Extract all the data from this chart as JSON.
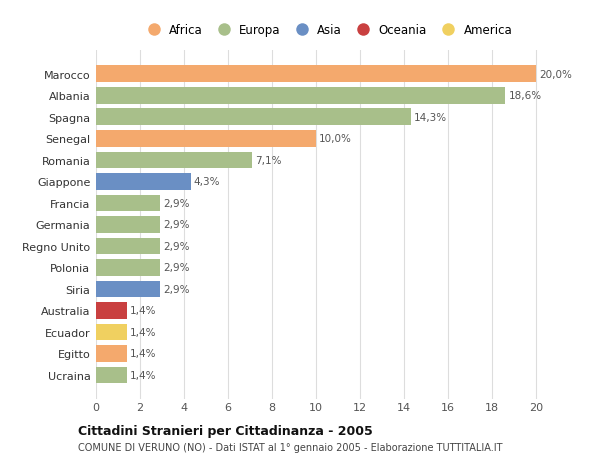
{
  "categories": [
    "Marocco",
    "Albania",
    "Spagna",
    "Senegal",
    "Romania",
    "Giappone",
    "Francia",
    "Germania",
    "Regno Unito",
    "Polonia",
    "Siria",
    "Australia",
    "Ecuador",
    "Egitto",
    "Ucraina"
  ],
  "values": [
    20.0,
    18.6,
    14.3,
    10.0,
    7.1,
    4.3,
    2.9,
    2.9,
    2.9,
    2.9,
    2.9,
    1.4,
    1.4,
    1.4,
    1.4
  ],
  "labels": [
    "20,0%",
    "18,6%",
    "14,3%",
    "10,0%",
    "7,1%",
    "4,3%",
    "2,9%",
    "2,9%",
    "2,9%",
    "2,9%",
    "2,9%",
    "1,4%",
    "1,4%",
    "1,4%",
    "1,4%"
  ],
  "colors": [
    "#f4a96d",
    "#a8bf8a",
    "#a8bf8a",
    "#f4a96d",
    "#a8bf8a",
    "#6a8fc4",
    "#a8bf8a",
    "#a8bf8a",
    "#a8bf8a",
    "#a8bf8a",
    "#6a8fc4",
    "#c94040",
    "#f0d060",
    "#f4a96d",
    "#a8bf8a"
  ],
  "legend_labels": [
    "Africa",
    "Europa",
    "Asia",
    "Oceania",
    "America"
  ],
  "legend_colors": [
    "#f4a96d",
    "#a8bf8a",
    "#6a8fc4",
    "#c94040",
    "#f0d060"
  ],
  "title": "Cittadini Stranieri per Cittadinanza - 2005",
  "subtitle": "COMUNE DI VERUNO (NO) - Dati ISTAT al 1° gennaio 2005 - Elaborazione TUTTITALIA.IT",
  "xlim": [
    0,
    21
  ],
  "xticks": [
    0,
    2,
    4,
    6,
    8,
    10,
    12,
    14,
    16,
    18,
    20
  ],
  "bg_color": "#ffffff",
  "grid_color": "#dddddd",
  "bar_height": 0.78
}
